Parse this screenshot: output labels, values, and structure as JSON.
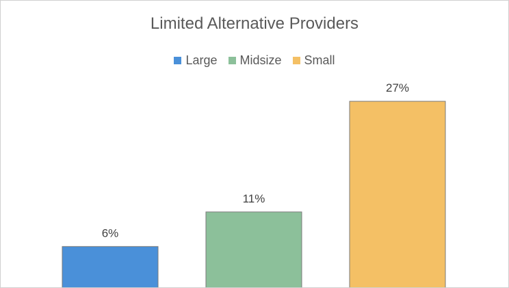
{
  "chart_data": {
    "type": "bar",
    "title": "Limited Alternative Providers",
    "categories": [
      "Large",
      "Midsize",
      "Small"
    ],
    "values": [
      6,
      11,
      27
    ],
    "value_labels": [
      "6%",
      "11%",
      "27%"
    ],
    "colors": [
      "#4a90d9",
      "#8cc09a",
      "#f4c065"
    ],
    "legend": {
      "placement": "top",
      "entries": [
        "Large",
        "Midsize",
        "Small"
      ]
    },
    "ylim": [
      0,
      37
    ],
    "grid": false
  }
}
